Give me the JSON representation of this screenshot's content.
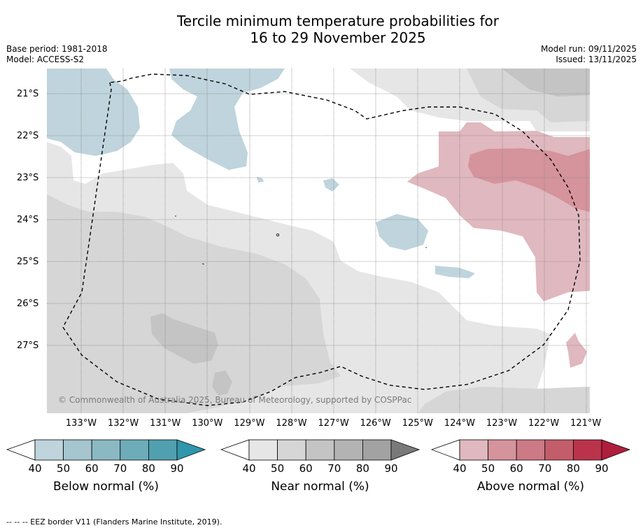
{
  "title_line1": "Tercile minimum temperature probabilities for",
  "title_line2": "16 to 29 November 2025",
  "base_period": "Base period: 1981-2018",
  "model": "Model: ACCESS-S2",
  "model_run": "Model run: 09/11/2025",
  "issued": "Issued: 13/11/2025",
  "copyright": "© Commonwealth of Australia 2025, Bureau of Meteorology, supported by COSPPac",
  "lat_labels": [
    "21°S",
    "22°S",
    "23°S",
    "24°S",
    "25°S",
    "26°S",
    "27°S"
  ],
  "lon_labels": [
    "133°W",
    "132°W",
    "131°W",
    "130°W",
    "129°W",
    "128°W",
    "127°W",
    "126°W",
    "125°W",
    "124°W",
    "123°W",
    "122°W",
    "121°W"
  ],
  "colorbars": [
    {
      "label": "Below normal (%)",
      "ticks": [
        "40",
        "50",
        "60",
        "70",
        "80",
        "90"
      ],
      "colors": [
        "#bfd4dc",
        "#a5c6cf",
        "#8ab9c4",
        "#6eacba",
        "#51a0b0",
        "#2f97ab"
      ]
    },
    {
      "label": "Near normal (%)",
      "ticks": [
        "40",
        "50",
        "60",
        "70",
        "80",
        "90"
      ],
      "colors": [
        "#e6e6e6",
        "#d6d6d6",
        "#c4c4c4",
        "#b3b3b3",
        "#a2a2a2",
        "#7a7a7a"
      ]
    },
    {
      "label": "Above normal (%)",
      "ticks": [
        "40",
        "50",
        "60",
        "70",
        "80",
        "90"
      ],
      "colors": [
        "#e0b8bf",
        "#d5939c",
        "#cc7a85",
        "#c45d6a",
        "#b9344b",
        "#b01e3e"
      ]
    }
  ],
  "footnote": "--  --  -- EEZ border V11 (Flanders Marine Institute, 2019).",
  "colors": {
    "below_40": "#bfd4dc",
    "near_40": "#e6e6e6",
    "near_50": "#d6d6d6",
    "near_60": "#c4c4c4",
    "above_40": "#e0b8bf",
    "above_50": "#d5939c"
  }
}
